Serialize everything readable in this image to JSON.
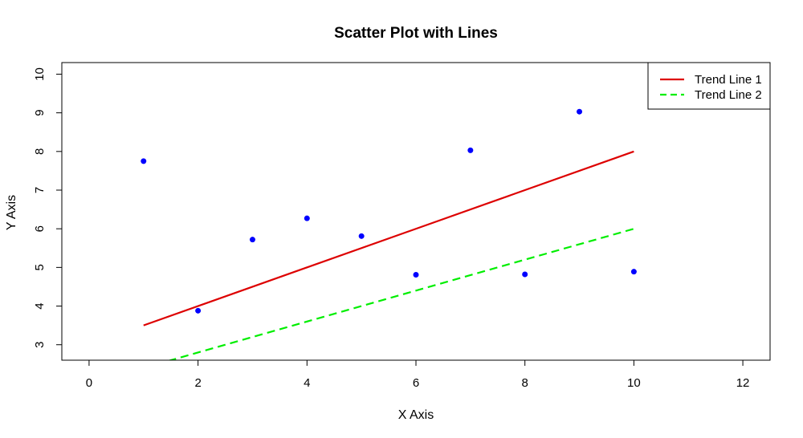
{
  "chart_data": {
    "type": "scatter",
    "title": "Scatter Plot with Lines",
    "xlabel": "X Axis",
    "ylabel": "Y Axis",
    "xlim": [
      -0.5,
      12.5
    ],
    "ylim": [
      2.6,
      10.3
    ],
    "xticks": [
      0,
      2,
      4,
      6,
      8,
      10,
      12
    ],
    "yticks": [
      3,
      4,
      5,
      6,
      7,
      8,
      9,
      10
    ],
    "grid": false,
    "legend_position": "top-right",
    "points": {
      "color": "#0000ff",
      "x": [
        1,
        2,
        3,
        4,
        5,
        6,
        7,
        8,
        9,
        10
      ],
      "y": [
        7.75,
        3.88,
        5.72,
        6.27,
        5.81,
        4.81,
        8.03,
        4.82,
        9.03,
        4.89
      ]
    },
    "series": [
      {
        "name": "Trend Line 1",
        "color": "#dd0000",
        "style": "solid",
        "x": [
          1,
          10
        ],
        "y": [
          3.5,
          8.0
        ]
      },
      {
        "name": "Trend Line 2",
        "color": "#00ee00",
        "style": "dashed",
        "x": [
          1,
          10
        ],
        "y": [
          2.4,
          6.0
        ]
      }
    ]
  }
}
